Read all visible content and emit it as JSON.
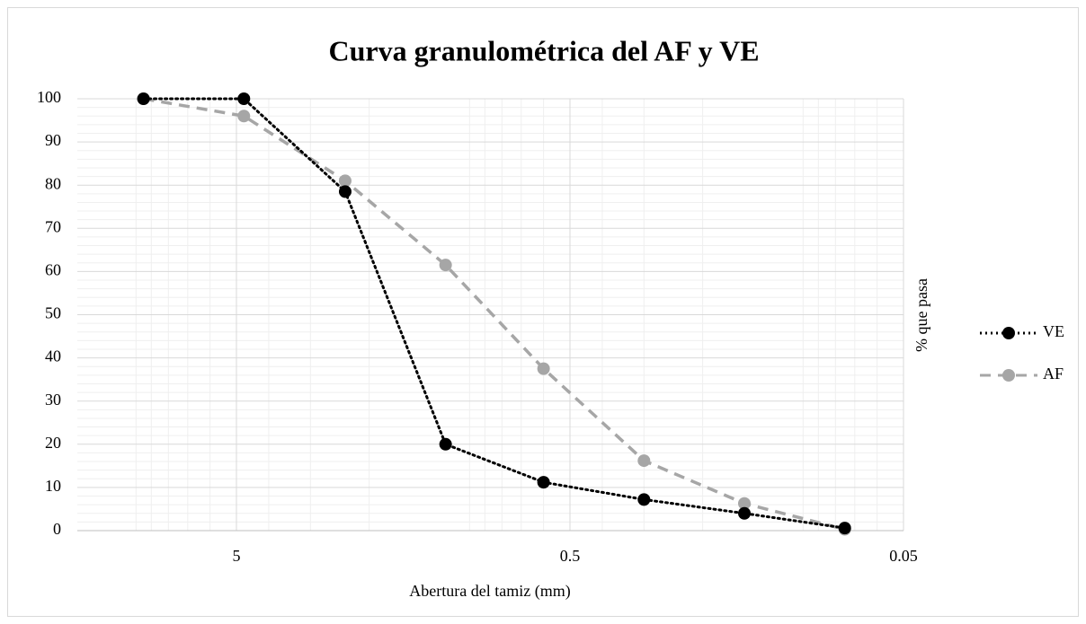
{
  "chart_data": {
    "type": "line",
    "title": "Curva granulométrica del AF y VE",
    "x_label": "Abertura del tamiz (mm)",
    "y_label": "% que pasa",
    "x": [
      9.5,
      4.75,
      2.36,
      1.18,
      0.6,
      0.3,
      0.15,
      0.075
    ],
    "series": [
      {
        "name": "VE",
        "color": "#000000",
        "line_style": "dotted",
        "values": [
          100,
          100,
          78.5,
          20,
          11.2,
          7.2,
          4,
          0.6
        ]
      },
      {
        "name": "AF",
        "color": "#a6a6a6",
        "line_style": "dashed",
        "values": [
          100,
          96,
          81,
          61.5,
          37.5,
          16.2,
          6.3,
          0.3
        ]
      }
    ],
    "xlim": [
      15,
      0.05
    ],
    "xticks": [
      5,
      0.5,
      0.05
    ],
    "x_log": true,
    "ylim": [
      0,
      100
    ],
    "yticks": [
      0,
      10,
      20,
      30,
      40,
      50,
      60,
      70,
      80,
      90,
      100
    ],
    "grid": true,
    "minor_grid": true,
    "legend": "right"
  }
}
